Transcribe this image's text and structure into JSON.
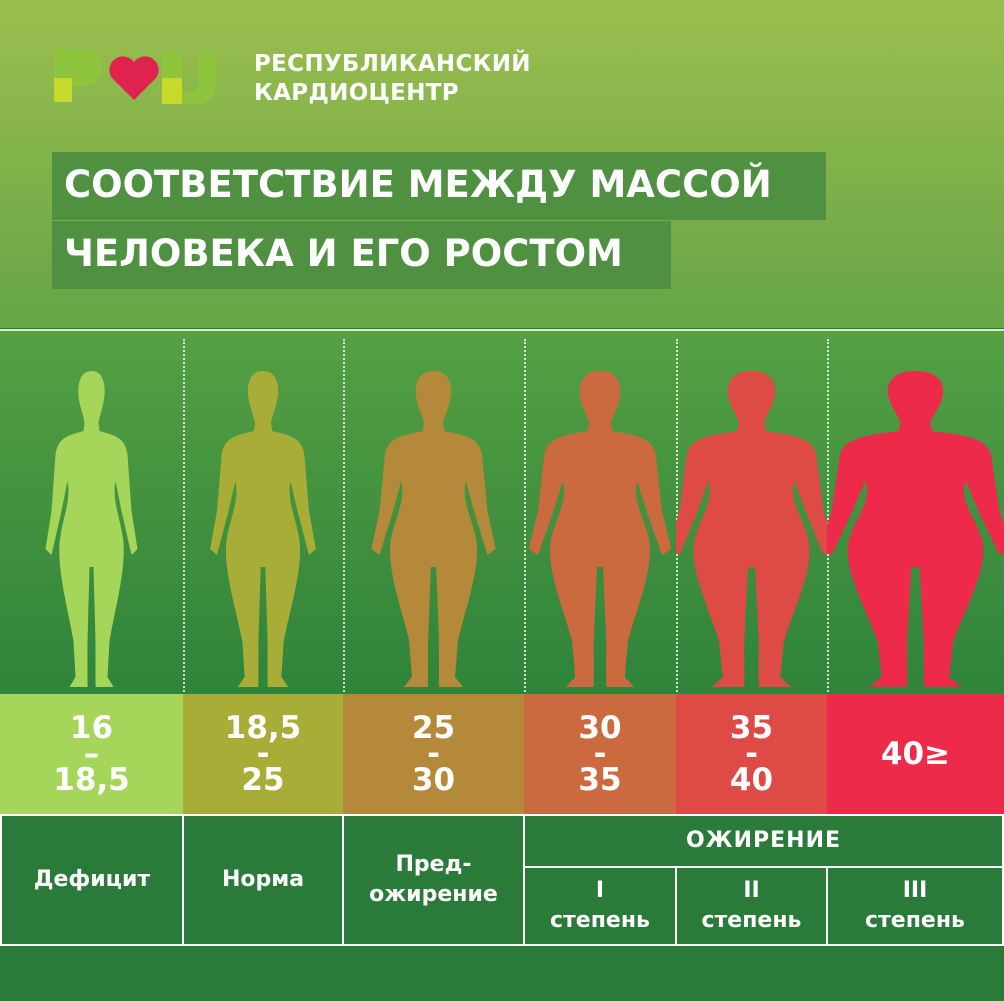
{
  "organization": {
    "logo_text": "РКЦ",
    "name_line1": "РЕСПУБЛИКАНСКИЙ",
    "name_line2": "КАРДИОЦЕНТР",
    "colors": {
      "green": "#8fc43d",
      "lime": "#c7d92c",
      "heart": "#e0234e"
    }
  },
  "title": {
    "line1": "СООТВЕТСТВИЕ МЕЖДУ МАССОЙ",
    "line2": "ЧЕЛОВЕКА И ЕГО РОСТОМ"
  },
  "categories": [
    {
      "range_top": "16",
      "dash": "–",
      "range_bottom": "18,5",
      "color": "#a5d65a",
      "figure": "woman-silhouette-underweight-icon",
      "width": 1.0
    },
    {
      "range_top": "18,5",
      "dash": "-",
      "range_bottom": "25",
      "color": "#a8ad37",
      "figure": "woman-silhouette-normal-icon",
      "width": 1.15
    },
    {
      "range_top": "25",
      "dash": "-",
      "range_bottom": "30",
      "color": "#b5893a",
      "figure": "woman-silhouette-preobese-icon",
      "width": 1.35
    },
    {
      "range_top": "30",
      "dash": "-",
      "range_bottom": "35",
      "color": "#cb6a3e",
      "figure": "woman-silhouette-obese-1-icon",
      "width": 1.55
    },
    {
      "range_top": "35",
      "dash": "-",
      "range_bottom": "40",
      "color": "#de4b45",
      "figure": "woman-silhouette-obese-2-icon",
      "width": 1.8
    },
    {
      "range_top": "40≥",
      "dash": "",
      "range_bottom": "",
      "color": "#ee2a4b",
      "figure": "woman-silhouette-obese-3-icon",
      "width": 2.1
    }
  ],
  "table": {
    "deficit": "Дефицит",
    "norm": "Норма",
    "pre_line1": "Пред-",
    "pre_line2": "ожирение",
    "obesity": "ОЖИРЕНИЕ",
    "degrees": [
      {
        "num": "I",
        "word": "степень"
      },
      {
        "num": "II",
        "word": "степень"
      },
      {
        "num": "III",
        "word": "степень"
      }
    ]
  }
}
